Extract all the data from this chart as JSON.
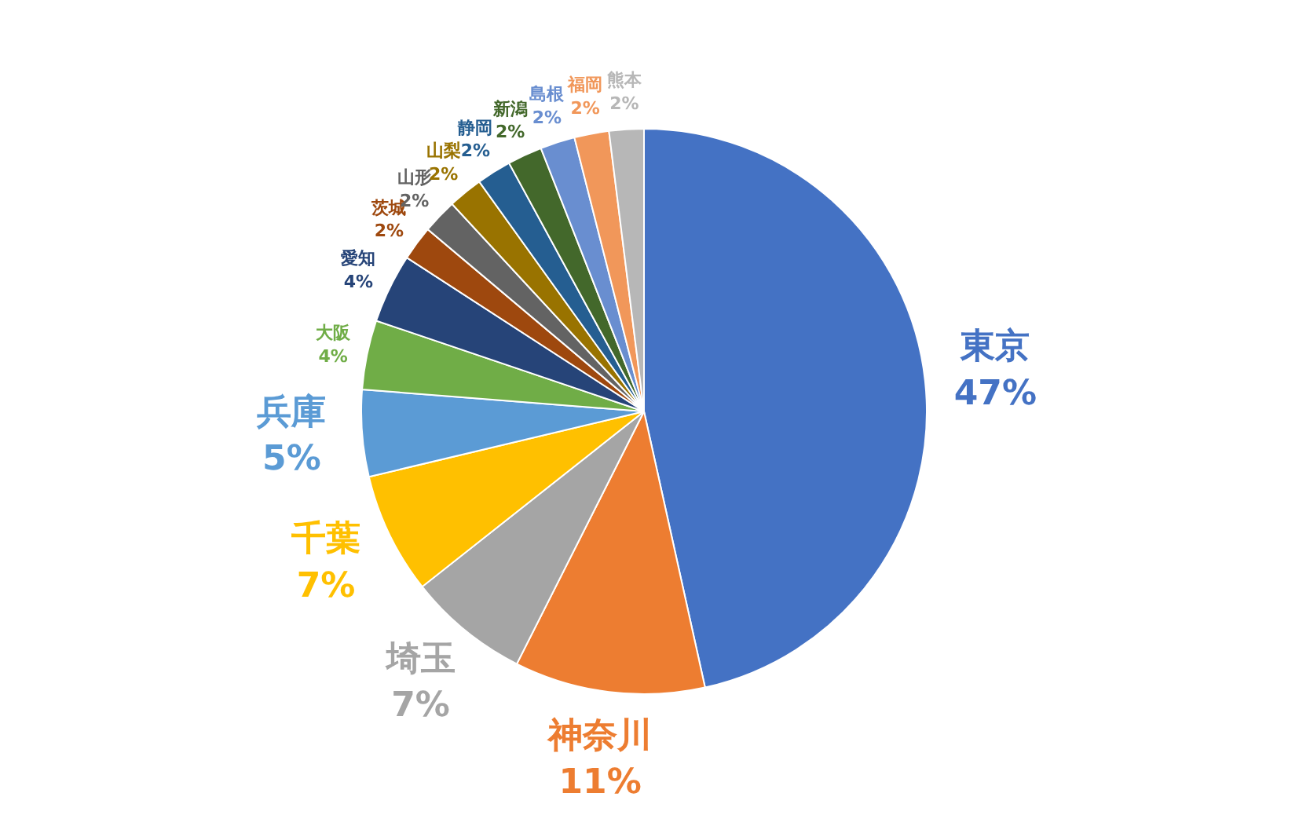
{
  "chart_data": {
    "type": "pie",
    "categories": [
      "東京",
      "神奈川",
      "埼玉",
      "千葉",
      "兵庫",
      "大阪",
      "愛知",
      "茨城",
      "山形",
      "山梨",
      "静岡",
      "新潟",
      "島根",
      "福岡",
      "熊本"
    ],
    "values": [
      47,
      11,
      7,
      7,
      5,
      4,
      4,
      2,
      2,
      2,
      2,
      2,
      2,
      2,
      2
    ],
    "value_labels": [
      "47%",
      "11%",
      "7%",
      "7%",
      "5%",
      "4%",
      "4%",
      "2%",
      "2%",
      "2%",
      "2%",
      "2%",
      "2%",
      "2%",
      "2%"
    ],
    "colors": [
      "#4472c4",
      "#ed7d31",
      "#a5a5a5",
      "#ffc000",
      "#5b9bd5",
      "#70ad47",
      "#264478",
      "#9e480e",
      "#636363",
      "#997300",
      "#255e91",
      "#43682b",
      "#698ed0",
      "#f1975a",
      "#b7b7b7"
    ]
  }
}
